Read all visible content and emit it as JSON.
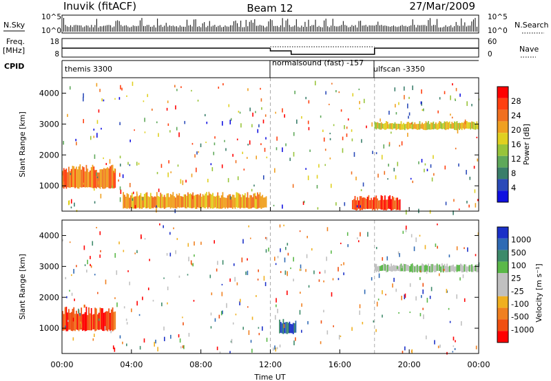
{
  "header": {
    "station": "Inuvik (fitACF)",
    "beam": "Beam 12",
    "date": "27/Mar/2009"
  },
  "strips": {
    "nsky_label": "N.Sky",
    "nsearch_label": "N.Search",
    "nsky_ticks": [
      "10^5",
      "10^0"
    ],
    "nsearch_ticks": [
      "10^5",
      "10^0"
    ],
    "freq_label_1": "Freq.",
    "freq_label_2": "[MHz]",
    "freq_ticks": [
      "18",
      "8"
    ],
    "nave_label": "Nave",
    "nave_ticks": [
      "60",
      "0"
    ],
    "cpid_label": "CPID",
    "modes": [
      {
        "name": "themis 3300",
        "start_h": 0.0
      },
      {
        "name": "normalsound (fast) -157",
        "start_h": 12.0
      },
      {
        "name": "ulfscan -3350",
        "start_h": 18.0
      }
    ]
  },
  "chart_data": [
    {
      "type": "heatmap",
      "title": "",
      "xlabel": "Time UT",
      "ylabel": "Slant Range [km]",
      "xlim_hours": [
        0,
        24
      ],
      "ylim_km": [
        180,
        4500
      ],
      "x_ticks": [
        "00:00",
        "04:00",
        "08:00",
        "12:00",
        "16:00",
        "20:00",
        "00:00"
      ],
      "y_ticks": [
        1000,
        2000,
        3000,
        4000
      ],
      "colorbar": {
        "label": "Power [dB]",
        "ticks": [
          4,
          8,
          12,
          16,
          20,
          24,
          28
        ],
        "range": [
          0,
          30
        ],
        "colors": [
          "#1010e0",
          "#2a4ab8",
          "#3a7e6a",
          "#5fa85a",
          "#98c43a",
          "#e0d020",
          "#f0a020",
          "#f07020",
          "#ff4010",
          "#ff0000"
        ]
      },
      "features": [
        {
          "desc": "ground scatter band",
          "t_start": 0.0,
          "t_end": 3.1,
          "range_km": [
            900,
            1700
          ],
          "value_db": 28
        },
        {
          "desc": "near-range echoes",
          "t_start": 3.5,
          "t_end": 11.8,
          "range_km": [
            250,
            800
          ],
          "value_db": 22
        },
        {
          "desc": "strong near echoes",
          "t_start": 16.7,
          "t_end": 19.5,
          "range_km": [
            200,
            700
          ],
          "value_db": 30
        },
        {
          "desc": "far echoes",
          "t_start": 18.0,
          "t_end": 24.0,
          "range_km": [
            2800,
            3100
          ],
          "value_db": 20
        }
      ]
    },
    {
      "type": "heatmap",
      "title": "",
      "xlabel": "Time UT",
      "ylabel": "Slant Range [km]",
      "xlim_hours": [
        0,
        24
      ],
      "ylim_km": [
        180,
        4500
      ],
      "x_ticks": [
        "00:00",
        "04:00",
        "08:00",
        "12:00",
        "16:00",
        "20:00",
        "00:00"
      ],
      "y_ticks": [
        1000,
        2000,
        3000,
        4000
      ],
      "colorbar": {
        "label": "Velocity [m s⁻¹]",
        "ticks": [
          1000,
          500,
          100,
          25,
          -25,
          -100,
          -500,
          -1000
        ],
        "colors": [
          "#1a30c8",
          "#2f6ab4",
          "#3d8a6a",
          "#5ab848",
          "#c0c0c0",
          "#c0c0c0",
          "#f0b020",
          "#f08020",
          "#f05010",
          "#ff0000"
        ]
      },
      "features": [
        {
          "desc": "away-flow band",
          "t_start": 0.0,
          "t_end": 3.1,
          "range_km": [
            900,
            1700
          ],
          "value_ms": -300
        },
        {
          "desc": "ground scatter",
          "t_start": 18.0,
          "t_end": 24.0,
          "range_km": [
            2800,
            3100
          ],
          "value_ms": 0
        },
        {
          "desc": "toward flows",
          "t_start": 12.5,
          "t_end": 13.5,
          "range_km": [
            800,
            1300
          ],
          "value_ms": 400
        }
      ]
    }
  ]
}
